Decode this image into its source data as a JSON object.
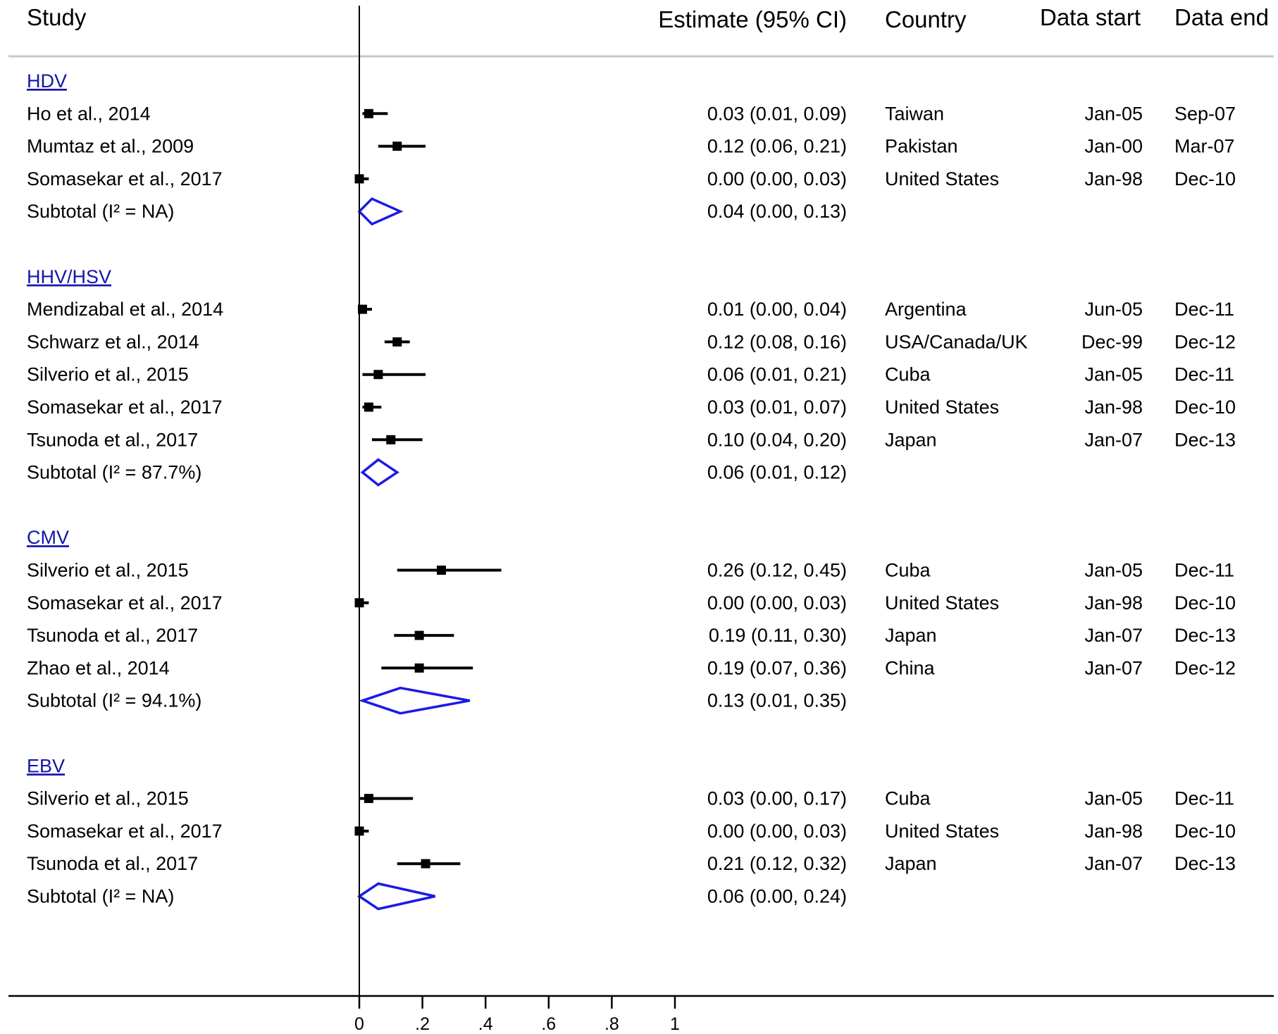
{
  "chart_data": {
    "type": "forest",
    "xlim": [
      0,
      1
    ],
    "x_ticks": [
      0,
      0.2,
      0.4,
      0.6,
      0.8,
      1
    ],
    "x_tick_labels": [
      "0",
      ".2",
      ".4",
      ".6",
      ".8",
      "1"
    ],
    "headers": {
      "study": "Study",
      "estimate": "Estimate (95% CI)",
      "country": "Country",
      "data_start": "Data start",
      "data_end": "Data end"
    },
    "colors": {
      "group_title": "#1515a8",
      "subtotal_diamond": "#1a1ae6",
      "point": "#000000",
      "separator": "#c8c8c8"
    },
    "groups": [
      {
        "name": "HDV",
        "studies": [
          {
            "study": "Ho et al., 2014",
            "estimate": 0.03,
            "lower": 0.01,
            "upper": 0.09,
            "ci_text": "0.03 (0.01, 0.09)",
            "country": "Taiwan",
            "data_start": "Jan-05",
            "data_end": "Sep-07"
          },
          {
            "study": "Mumtaz et al., 2009",
            "estimate": 0.12,
            "lower": 0.06,
            "upper": 0.21,
            "ci_text": "0.12 (0.06, 0.21)",
            "country": "Pakistan",
            "data_start": "Jan-00",
            "data_end": "Mar-07"
          },
          {
            "study": "Somasekar et al., 2017",
            "estimate": 0.0,
            "lower": 0.0,
            "upper": 0.03,
            "ci_text": "0.00 (0.00, 0.03)",
            "country": "United States",
            "data_start": "Jan-98",
            "data_end": "Dec-10"
          }
        ],
        "subtotal": {
          "label": "Subtotal  (I² = NA)",
          "estimate": 0.04,
          "lower": 0.0,
          "upper": 0.13,
          "ci_text": "0.04 (0.00, 0.13)"
        }
      },
      {
        "name": "HHV/HSV",
        "studies": [
          {
            "study": "Mendizabal et al., 2014",
            "estimate": 0.01,
            "lower": 0.0,
            "upper": 0.04,
            "ci_text": "0.01 (0.00, 0.04)",
            "country": "Argentina",
            "data_start": "Jun-05",
            "data_end": "Dec-11"
          },
          {
            "study": "Schwarz et al., 2014",
            "estimate": 0.12,
            "lower": 0.08,
            "upper": 0.16,
            "ci_text": "0.12 (0.08, 0.16)",
            "country": "USA/Canada/UK",
            "data_start": "Dec-99",
            "data_end": "Dec-12"
          },
          {
            "study": "Silverio et al., 2015",
            "estimate": 0.06,
            "lower": 0.01,
            "upper": 0.21,
            "ci_text": "0.06 (0.01, 0.21)",
            "country": "Cuba",
            "data_start": "Jan-05",
            "data_end": "Dec-11"
          },
          {
            "study": "Somasekar et al., 2017",
            "estimate": 0.03,
            "lower": 0.01,
            "upper": 0.07,
            "ci_text": "0.03 (0.01, 0.07)",
            "country": "United States",
            "data_start": "Jan-98",
            "data_end": "Dec-10"
          },
          {
            "study": "Tsunoda et al., 2017",
            "estimate": 0.1,
            "lower": 0.04,
            "upper": 0.2,
            "ci_text": "0.10 (0.04, 0.20)",
            "country": "Japan",
            "data_start": "Jan-07",
            "data_end": "Dec-13"
          }
        ],
        "subtotal": {
          "label": "Subtotal  (I² = 87.7%)",
          "estimate": 0.06,
          "lower": 0.01,
          "upper": 0.12,
          "ci_text": "0.06 (0.01, 0.12)"
        }
      },
      {
        "name": "CMV",
        "studies": [
          {
            "study": "Silverio et al., 2015",
            "estimate": 0.26,
            "lower": 0.12,
            "upper": 0.45,
            "ci_text": "0.26 (0.12, 0.45)",
            "country": "Cuba",
            "data_start": "Jan-05",
            "data_end": "Dec-11"
          },
          {
            "study": "Somasekar et al., 2017",
            "estimate": 0.0,
            "lower": 0.0,
            "upper": 0.03,
            "ci_text": "0.00 (0.00, 0.03)",
            "country": "United States",
            "data_start": "Jan-98",
            "data_end": "Dec-10"
          },
          {
            "study": "Tsunoda et al., 2017",
            "estimate": 0.19,
            "lower": 0.11,
            "upper": 0.3,
            "ci_text": "0.19 (0.11, 0.30)",
            "country": "Japan",
            "data_start": "Jan-07",
            "data_end": "Dec-13"
          },
          {
            "study": "Zhao et al., 2014",
            "estimate": 0.19,
            "lower": 0.07,
            "upper": 0.36,
            "ci_text": "0.19 (0.07, 0.36)",
            "country": "China",
            "data_start": "Jan-07",
            "data_end": "Dec-12"
          }
        ],
        "subtotal": {
          "label": "Subtotal  (I² = 94.1%)",
          "estimate": 0.13,
          "lower": 0.01,
          "upper": 0.35,
          "ci_text": "0.13 (0.01, 0.35)"
        }
      },
      {
        "name": "EBV",
        "studies": [
          {
            "study": "Silverio et al., 2015",
            "estimate": 0.03,
            "lower": 0.0,
            "upper": 0.17,
            "ci_text": "0.03 (0.00, 0.17)",
            "country": "Cuba",
            "data_start": "Jan-05",
            "data_end": "Dec-11"
          },
          {
            "study": "Somasekar et al., 2017",
            "estimate": 0.0,
            "lower": 0.0,
            "upper": 0.03,
            "ci_text": "0.00 (0.00, 0.03)",
            "country": "United States",
            "data_start": "Jan-98",
            "data_end": "Dec-10"
          },
          {
            "study": "Tsunoda et al., 2017",
            "estimate": 0.21,
            "lower": 0.12,
            "upper": 0.32,
            "ci_text": "0.21 (0.12, 0.32)",
            "country": "Japan",
            "data_start": "Jan-07",
            "data_end": "Dec-13"
          }
        ],
        "subtotal": {
          "label": "Subtotal  (I² = NA)",
          "estimate": 0.06,
          "lower": 0.0,
          "upper": 0.24,
          "ci_text": "0.06 (0.00, 0.24)"
        }
      }
    ]
  }
}
